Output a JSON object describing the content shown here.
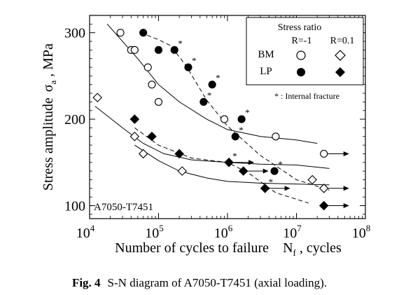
{
  "chart_data": {
    "type": "scatter",
    "x_scale": "log",
    "xlabel_main": "Number of cycles to failure",
    "xlabel_sym": "N",
    "xlabel_sub": "f",
    "xlabel_unit": " , cycles",
    "ylabel_main": "Stress amplitude",
    "ylabel_sym": "σ",
    "ylabel_sub": "a",
    "ylabel_unit": " , MPa",
    "xlim": [
      10000,
      100000000
    ],
    "ylim": [
      85,
      320
    ],
    "x_ticks": [
      {
        "value": 10000,
        "base": "10",
        "exp": "4"
      },
      {
        "value": 100000,
        "base": "10",
        "exp": "5"
      },
      {
        "value": 1000000,
        "base": "10",
        "exp": "6"
      },
      {
        "value": 10000000,
        "base": "10",
        "exp": "7"
      },
      {
        "value": 100000000,
        "base": "10",
        "exp": "8"
      }
    ],
    "y_ticks": [
      100,
      200,
      300
    ],
    "material_label": "A7050-T7451",
    "legend": {
      "title": "Stress ratio",
      "col1": "R=-1",
      "col2": "R=0.1",
      "row1": "BM",
      "row2": "LP",
      "note": "* : Internal fracture"
    },
    "series": [
      {
        "name": "BM R=-1",
        "marker": "circle-open",
        "points": [
          [
            28000,
            300
          ],
          [
            40000,
            280
          ],
          [
            45000,
            280
          ],
          [
            70000,
            260
          ],
          [
            80000,
            240
          ],
          [
            100000,
            220
          ],
          [
            900000,
            200
          ],
          [
            5000000,
            180
          ],
          [
            25000000,
            160
          ]
        ],
        "runout": [
          false,
          false,
          false,
          false,
          false,
          false,
          false,
          false,
          true
        ],
        "internal": [
          false,
          false,
          false,
          false,
          false,
          false,
          false,
          false,
          false
        ]
      },
      {
        "name": "BM R=0.1",
        "marker": "diamond-open",
        "points": [
          [
            13000,
            225
          ],
          [
            45000,
            180
          ],
          [
            60000,
            160
          ],
          [
            220000,
            140
          ],
          [
            17000000,
            130
          ],
          [
            25000000,
            120
          ]
        ],
        "runout": [
          false,
          false,
          false,
          false,
          false,
          true
        ],
        "internal": [
          false,
          false,
          false,
          false,
          false,
          false
        ]
      },
      {
        "name": "LP R=-1",
        "marker": "circle-filled",
        "points": [
          [
            60000,
            300
          ],
          [
            100000,
            280
          ],
          [
            170000,
            280
          ],
          [
            270000,
            260
          ],
          [
            450000,
            220
          ],
          [
            600000,
            240
          ],
          [
            1300000,
            180
          ],
          [
            1600000,
            200
          ],
          [
            4800000,
            140
          ]
        ],
        "runout": [
          false,
          false,
          false,
          false,
          false,
          false,
          false,
          false,
          false
        ],
        "internal": [
          false,
          false,
          true,
          true,
          true,
          true,
          true,
          true,
          true
        ]
      },
      {
        "name": "LP R=0.1",
        "marker": "diamond-filled",
        "points": [
          [
            45000,
            200
          ],
          [
            80000,
            180
          ],
          [
            200000,
            160
          ],
          [
            1050000,
            150
          ],
          [
            1700000,
            140
          ],
          [
            3500000,
            120
          ],
          [
            25000000,
            100
          ]
        ],
        "runout": [
          false,
          false,
          false,
          true,
          true,
          true,
          true
        ],
        "internal": [
          false,
          false,
          false,
          true,
          true,
          true,
          false
        ]
      }
    ],
    "fit_curves": [
      {
        "style": "solid",
        "points": [
          [
            18000,
            310
          ],
          [
            50000,
            270
          ],
          [
            100000,
            240
          ],
          [
            200000,
            220
          ],
          [
            500000,
            200
          ],
          [
            1000000,
            188
          ],
          [
            3000000,
            180
          ],
          [
            10000000,
            176
          ],
          [
            20000000,
            172
          ]
        ]
      },
      {
        "style": "solid",
        "points": [
          [
            12000,
            215
          ],
          [
            30000,
            190
          ],
          [
            60000,
            172
          ],
          [
            120000,
            160
          ],
          [
            300000,
            153
          ],
          [
            1000000,
            150
          ],
          [
            3000000,
            148
          ],
          [
            10000000,
            147
          ],
          [
            30000000,
            143
          ]
        ]
      },
      {
        "style": "solid",
        "points": [
          [
            45000,
            170
          ],
          [
            100000,
            152
          ],
          [
            200000,
            140
          ],
          [
            500000,
            132
          ],
          [
            1000000,
            128
          ],
          [
            3000000,
            126
          ],
          [
            10000000,
            125
          ],
          [
            30000000,
            124
          ]
        ]
      },
      {
        "style": "dashed",
        "points": [
          [
            55000,
            300
          ],
          [
            100000,
            292
          ],
          [
            150000,
            285
          ],
          [
            250000,
            262
          ],
          [
            500000,
            222
          ],
          [
            1000000,
            192
          ],
          [
            3000000,
            158
          ],
          [
            10000000,
            130
          ],
          [
            30000000,
            118
          ]
        ]
      },
      {
        "style": "dashed",
        "points": [
          [
            45000,
            190
          ],
          [
            100000,
            170
          ],
          [
            300000,
            155
          ],
          [
            1000000,
            150
          ],
          [
            2000000,
            138
          ],
          [
            5000000,
            115
          ],
          [
            15000000,
            103
          ]
        ]
      }
    ]
  },
  "caption": {
    "fig": "Fig. 4",
    "text": "S-N diagram of A7050-T7451 (axial loading)."
  }
}
